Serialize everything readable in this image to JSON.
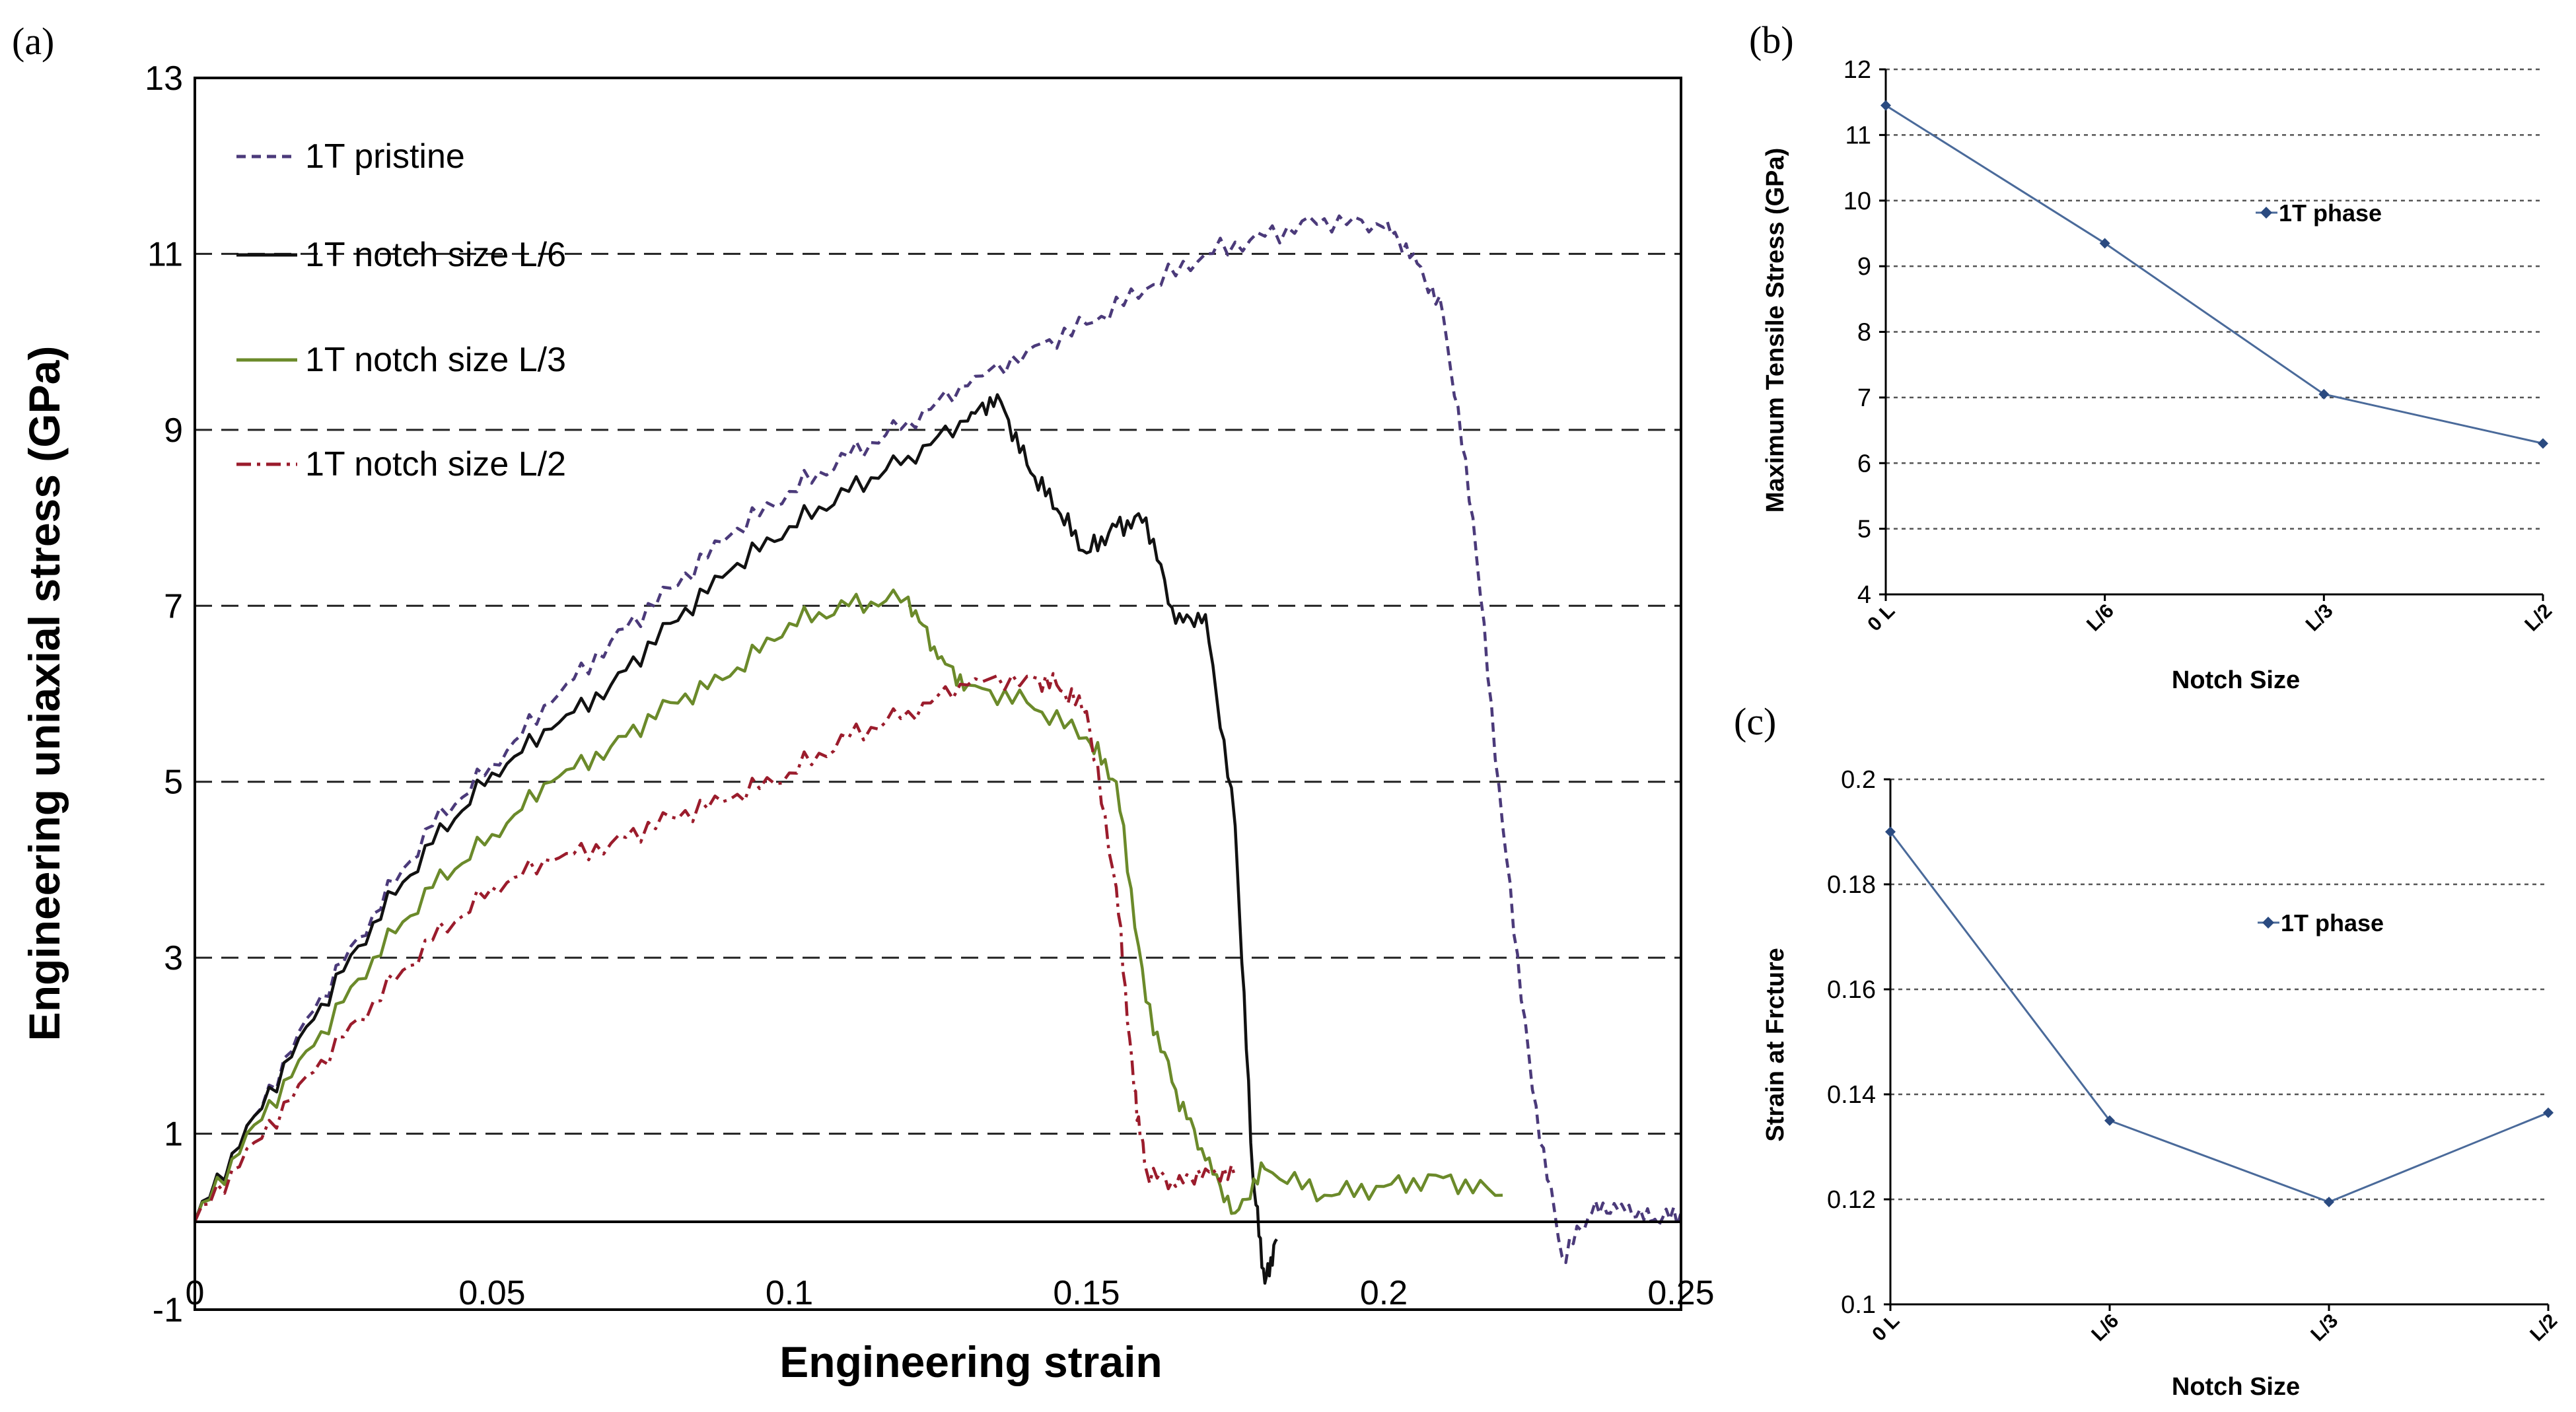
{
  "chart_data": [
    {
      "panel": "(a)",
      "type": "line",
      "xlabel": "Engineering strain",
      "ylabel": "Engineering uniaxial stress (GPa)",
      "xlim": [
        0,
        0.25
      ],
      "ylim": [
        -1,
        13
      ],
      "xticks": [
        0,
        0.05,
        0.1,
        0.15,
        0.2,
        0.25
      ],
      "xtick_labels": [
        "0",
        "0.05",
        "0.1",
        "0.15",
        "0.2",
        "0.25"
      ],
      "yticks": [
        -1,
        1,
        3,
        5,
        7,
        9,
        11,
        13
      ],
      "ytick_labels": [
        "-1",
        "1",
        "3",
        "5",
        "7",
        "9",
        "11",
        "13"
      ],
      "grid": "horizontal dashed at 1, 3, 5, 7, 9, 11",
      "legend_position": "top-left",
      "series": [
        {
          "name": "1T pristine",
          "color": "#4b3a7a",
          "dash": "dashed",
          "x": [
            0,
            0.01,
            0.02,
            0.03,
            0.04,
            0.05,
            0.06,
            0.07,
            0.08,
            0.09,
            0.1,
            0.11,
            0.12,
            0.13,
            0.14,
            0.15,
            0.16,
            0.17,
            0.18,
            0.19,
            0.2,
            0.205,
            0.21,
            0.215,
            0.22,
            0.225,
            0.23,
            0.235,
            0.24,
            0.245,
            0.25
          ],
          "values": [
            0,
            1.2,
            2.4,
            3.5,
            4.5,
            5.2,
            5.9,
            6.6,
            7.2,
            7.8,
            8.3,
            8.7,
            9.1,
            9.5,
            9.9,
            10.2,
            10.6,
            11.0,
            11.2,
            11.4,
            11.3,
            11.0,
            10.3,
            8.0,
            4.5,
            1.5,
            -0.4,
            0.1,
            0.2,
            0.0,
            0.1
          ]
        },
        {
          "name": "1T notch size L/6",
          "color": "#111111",
          "dash": "solid",
          "x": [
            0,
            0.01,
            0.02,
            0.03,
            0.04,
            0.05,
            0.06,
            0.07,
            0.08,
            0.09,
            0.1,
            0.11,
            0.12,
            0.13,
            0.135,
            0.14,
            0.145,
            0.15,
            0.155,
            0.16,
            0.165,
            0.17,
            0.175,
            0.178,
            0.18,
            0.182
          ],
          "values": [
            0,
            1.2,
            2.3,
            3.4,
            4.3,
            5.1,
            5.6,
            6.1,
            6.8,
            7.4,
            7.9,
            8.3,
            8.7,
            9.1,
            9.4,
            8.6,
            8.1,
            7.6,
            7.9,
            8.0,
            6.8,
            6.9,
            4.5,
            0.5,
            -0.7,
            -0.2
          ]
        },
        {
          "name": "1T notch size L/3",
          "color": "#6b8a2a",
          "dash": "solid",
          "x": [
            0,
            0.01,
            0.02,
            0.03,
            0.04,
            0.05,
            0.06,
            0.07,
            0.08,
            0.09,
            0.1,
            0.11,
            0.12,
            0.125,
            0.13,
            0.14,
            0.15,
            0.155,
            0.16,
            0.165,
            0.17,
            0.175,
            0.18,
            0.19,
            0.2,
            0.21,
            0.22
          ],
          "values": [
            0,
            1.1,
            2.0,
            3.0,
            3.8,
            4.4,
            5.0,
            5.4,
            5.9,
            6.2,
            6.8,
            7.0,
            7.1,
            6.4,
            6.1,
            5.9,
            5.5,
            5.0,
            2.5,
            1.5,
            0.7,
            0.1,
            0.6,
            0.3,
            0.4,
            0.5,
            0.3
          ]
        },
        {
          "name": "1T notch size L/2",
          "color": "#9b1c2c",
          "dash": "dashdot",
          "x": [
            0,
            0.01,
            0.02,
            0.03,
            0.04,
            0.05,
            0.06,
            0.07,
            0.08,
            0.09,
            0.1,
            0.11,
            0.12,
            0.13,
            0.14,
            0.145,
            0.15,
            0.155,
            0.158,
            0.16,
            0.165,
            0.17,
            0.175
          ],
          "values": [
            0,
            0.9,
            1.7,
            2.5,
            3.2,
            3.8,
            4.1,
            4.3,
            4.6,
            4.8,
            5.1,
            5.5,
            5.8,
            6.1,
            6.2,
            6.1,
            5.8,
            3.8,
            1.5,
            0.6,
            0.4,
            0.6,
            0.5
          ]
        }
      ],
      "legend_labels": {
        "pristine": "1T pristine",
        "l6": "1T notch size L/6",
        "l3": "1T notch size L/3",
        "l2": "1T notch size L/2"
      }
    },
    {
      "panel": "(b)",
      "type": "line",
      "xlabel": "Notch Size",
      "ylabel": "Maximum Tensile Stress (GPa)",
      "categories": [
        "0 L",
        "L/6",
        "L/3",
        "L/2"
      ],
      "ylim": [
        4,
        12
      ],
      "yticks": [
        4,
        5,
        6,
        7,
        8,
        9,
        10,
        11,
        12
      ],
      "ytick_labels": [
        "4",
        "5",
        "6",
        "7",
        "8",
        "9",
        "10",
        "11",
        "12"
      ],
      "grid": "horizontal dotted",
      "legend_position": "upper-right",
      "series": [
        {
          "name": "1T phase",
          "color": "#4a6a9a",
          "values": [
            11.45,
            9.35,
            7.05,
            6.3
          ]
        }
      ]
    },
    {
      "panel": "(c)",
      "type": "line",
      "xlabel": "Notch Size",
      "ylabel": "Strain at  Frcture",
      "categories": [
        "0 L",
        "L/6",
        "L/3",
        "L/2"
      ],
      "ylim": [
        0.1,
        0.2
      ],
      "yticks": [
        0.1,
        0.12,
        0.14,
        0.16,
        0.18,
        0.2
      ],
      "ytick_labels": [
        "0.1",
        "0.12",
        "0.14",
        "0.16",
        "0.18",
        "0.2"
      ],
      "grid": "horizontal dotted",
      "legend_position": "upper-right",
      "series": [
        {
          "name": "1T phase",
          "color": "#4a6a9a",
          "values": [
            0.19,
            0.135,
            0.1195,
            0.1365
          ]
        }
      ]
    }
  ]
}
